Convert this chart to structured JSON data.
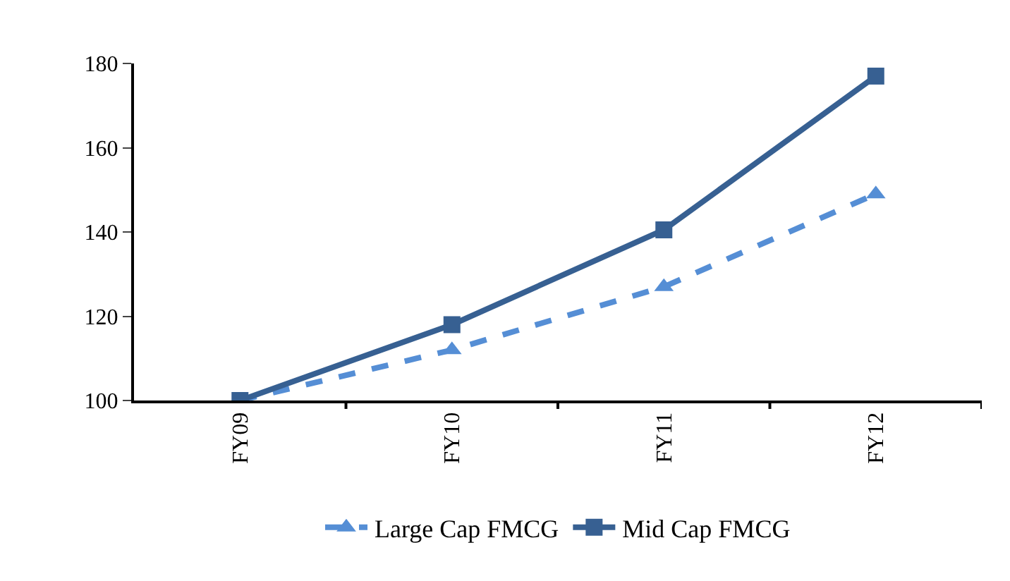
{
  "chart_data": {
    "type": "line",
    "categories": [
      "FY09",
      "FY10",
      "FY11",
      "FY12"
    ],
    "series": [
      {
        "name": "Large Cap FMCG",
        "color": "#558ed5",
        "values": [
          100,
          112,
          127,
          149
        ],
        "marker": "triangle",
        "line_style": "dashed"
      },
      {
        "name": "Mid Cap FMCG",
        "color": "#376092",
        "values": [
          100,
          118,
          140.5,
          177
        ],
        "marker": "square",
        "line_style": "solid"
      }
    ],
    "ylim": [
      100,
      180
    ],
    "yticks": [
      100,
      120,
      140,
      160,
      180
    ],
    "grid": false,
    "legend": "bottom"
  }
}
